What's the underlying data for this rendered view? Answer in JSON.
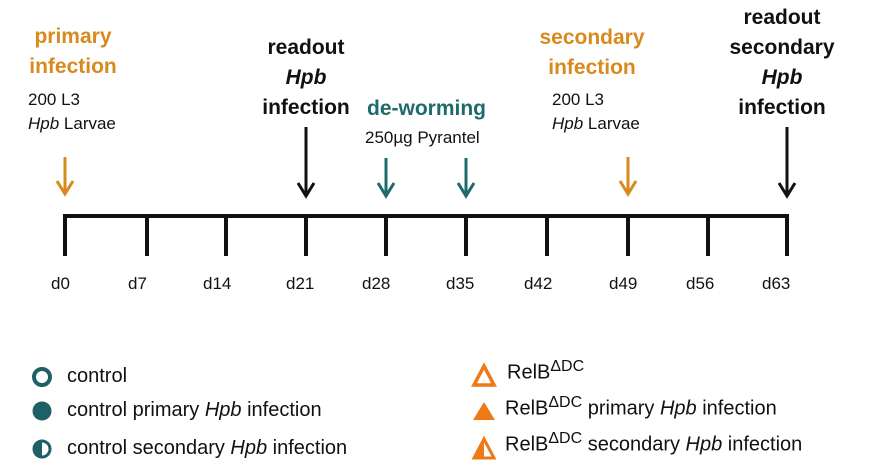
{
  "timeline": {
    "ticks": [
      "d0",
      "d7",
      "d14",
      "d21",
      "d28",
      "d35",
      "d42",
      "d49",
      "d56",
      "d63"
    ]
  },
  "events": {
    "primary": {
      "line1": "primary",
      "line2": "infection",
      "dose": "200 L3",
      "larvae_italic": "Hpb",
      "larvae_rest": " Larvae"
    },
    "readout": {
      "line1": "readout",
      "line2": "Hpb",
      "line3": "infection"
    },
    "deworming": {
      "title": "de-worming",
      "dose": "250µg Pyrantel"
    },
    "secondary": {
      "line1": "secondary",
      "line2": "infection",
      "dose": "200 L3",
      "larvae_italic": "Hpb",
      "larvae_rest": " Larvae"
    },
    "readout_secondary": {
      "line1": "readout",
      "line2": "secondary",
      "line3": "Hpb",
      "line4": "infection"
    }
  },
  "legend": {
    "left": [
      {
        "icon": "open-circle-icon",
        "text": "control"
      },
      {
        "icon": "filled-circle-icon",
        "text_pre": "control primary ",
        "text_italic": "Hpb",
        "text_post": " infection"
      },
      {
        "icon": "half-circle-icon",
        "text_pre": "control secondary ",
        "text_italic": "Hpb",
        "text_post": " infection"
      }
    ],
    "right": [
      {
        "icon": "open-triangle-icon",
        "base": "RelB",
        "sup": "ΔDC",
        "text_pre": "",
        "text_italic": "",
        "text_post": ""
      },
      {
        "icon": "filled-triangle-icon",
        "base": "RelB",
        "sup": "ΔDC",
        "text_pre": " primary ",
        "text_italic": "Hpb",
        "text_post": " infection"
      },
      {
        "icon": "half-triangle-icon",
        "base": "RelB",
        "sup": "ΔDC",
        "text_pre": " secondary ",
        "text_italic": "Hpb",
        "text_post": " infection"
      }
    ]
  },
  "colors": {
    "orange": "#d98a1e",
    "teal": "#1f6b6b",
    "dark": "#111111"
  }
}
